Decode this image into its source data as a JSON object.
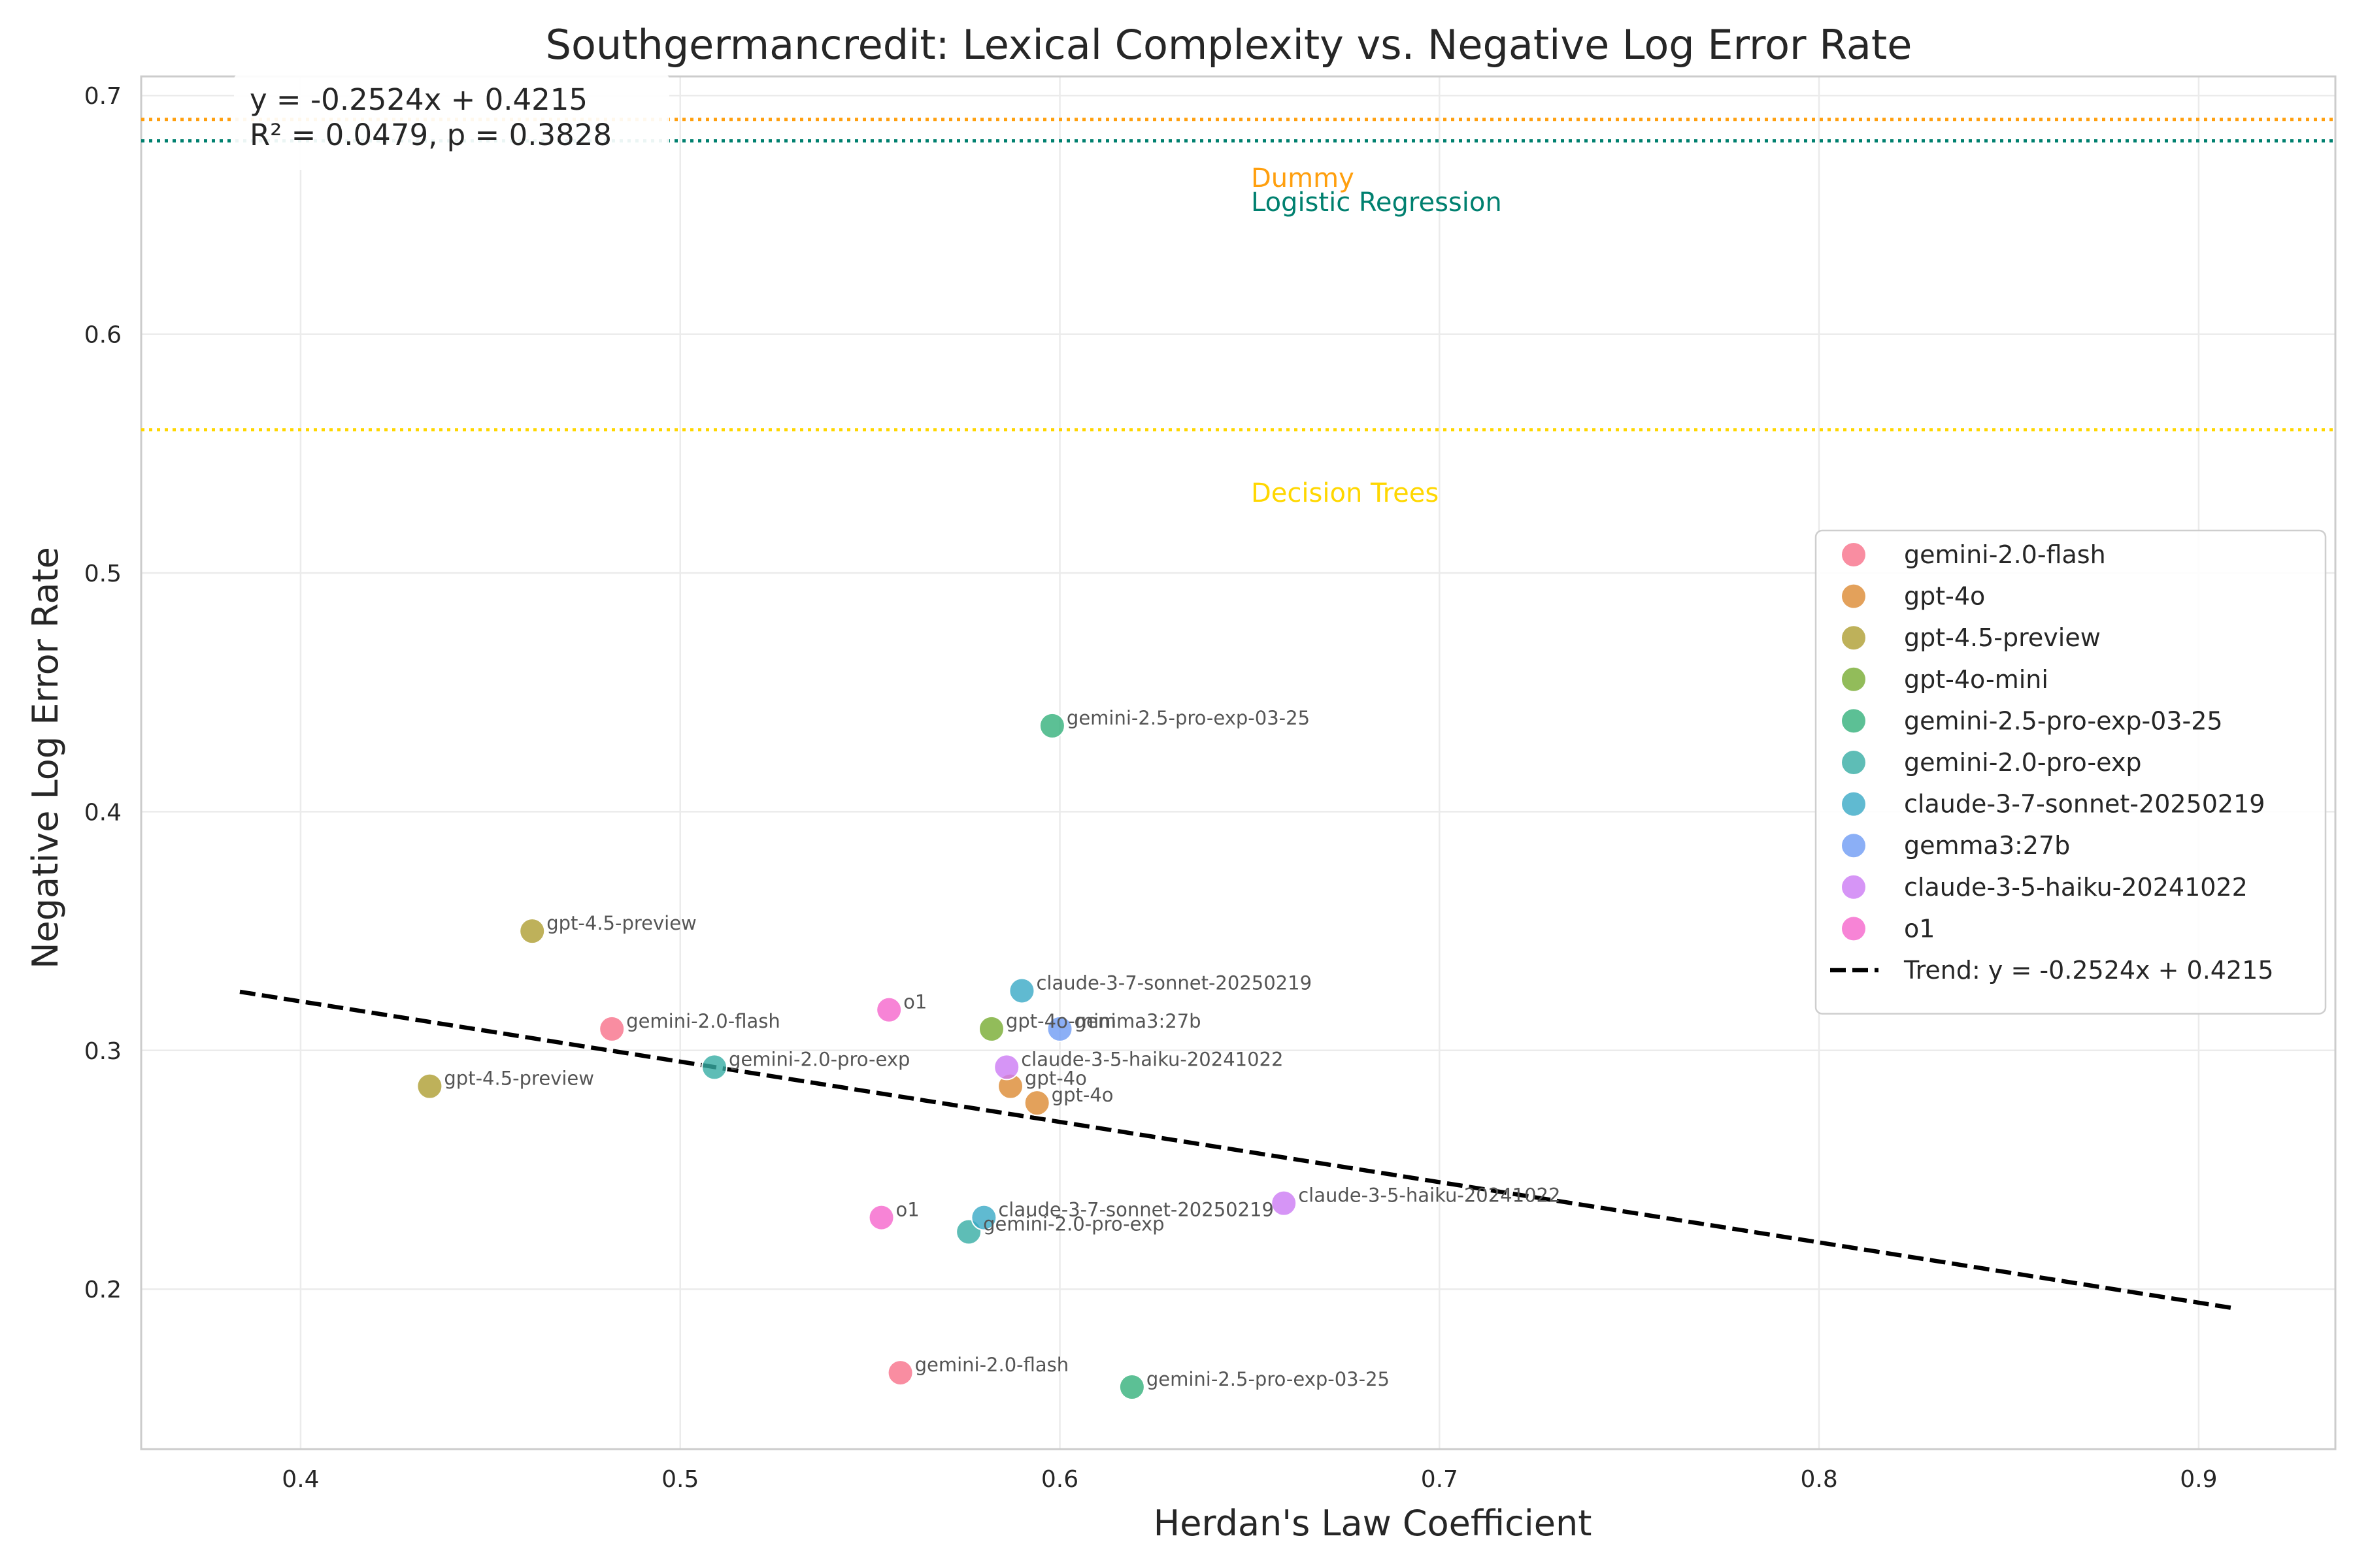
{
  "chart_data": {
    "type": "scatter",
    "title": "Southgermancredit: Lexical Complexity vs. Negative Log Error Rate",
    "xlabel": "Herdan's Law Coefficient",
    "ylabel": "Negative Log Error Rate",
    "xlim": [
      0.358,
      0.936
    ],
    "ylim": [
      0.133,
      0.708
    ],
    "x_ticks": [
      0.4,
      0.5,
      0.6,
      0.7,
      0.8,
      0.9
    ],
    "x_tick_labels": [
      "0.4",
      "0.5",
      "0.6",
      "0.7",
      "0.8",
      "0.9"
    ],
    "y_ticks": [
      0.2,
      0.3,
      0.4,
      0.5,
      0.6,
      0.7
    ],
    "y_tick_labels": [
      "0.2",
      "0.3",
      "0.4",
      "0.5",
      "0.6",
      "0.7"
    ],
    "grid": true,
    "legend_position": "right",
    "series": [
      {
        "name": "gemini-2.0-flash",
        "color": "#f77189",
        "points": [
          {
            "x": 0.482,
            "y": 0.309,
            "label": "gemini-2.0-flash"
          },
          {
            "x": 0.558,
            "y": 0.165,
            "label": "gemini-2.0-flash"
          }
        ]
      },
      {
        "name": "gpt-4o",
        "color": "#dc8932",
        "points": [
          {
            "x": 0.587,
            "y": 0.285,
            "label": "gpt-4o"
          },
          {
            "x": 0.594,
            "y": 0.278,
            "label": "gpt-4o"
          }
        ]
      },
      {
        "name": "gpt-4.5-preview",
        "color": "#ae9d31",
        "points": [
          {
            "x": 0.461,
            "y": 0.35,
            "label": "gpt-4.5-preview"
          },
          {
            "x": 0.434,
            "y": 0.285,
            "label": "gpt-4.5-preview"
          }
        ]
      },
      {
        "name": "gpt-4o-mini",
        "color": "#77ab31",
        "points": [
          {
            "x": 0.582,
            "y": 0.309,
            "label": "gpt-4o-mini"
          }
        ]
      },
      {
        "name": "gemini-2.5-pro-exp-03-25",
        "color": "#33b07a",
        "points": [
          {
            "x": 0.598,
            "y": 0.436,
            "label": "gemini-2.5-pro-exp-03-25"
          },
          {
            "x": 0.619,
            "y": 0.159,
            "label": "gemini-2.5-pro-exp-03-25"
          }
        ]
      },
      {
        "name": "gemini-2.0-pro-exp",
        "color": "#36ada4",
        "points": [
          {
            "x": 0.509,
            "y": 0.293,
            "label": "gemini-2.0-pro-exp"
          },
          {
            "x": 0.576,
            "y": 0.224,
            "label": "gemini-2.0-pro-exp"
          }
        ]
      },
      {
        "name": "claude-3-7-sonnet-20250219",
        "color": "#38a9c5",
        "points": [
          {
            "x": 0.59,
            "y": 0.325,
            "label": "claude-3-7-sonnet-20250219"
          },
          {
            "x": 0.58,
            "y": 0.23,
            "label": "claude-3-7-sonnet-20250219"
          }
        ]
      },
      {
        "name": "gemma3:27b",
        "color": "#6e9bf4",
        "points": [
          {
            "x": 0.6,
            "y": 0.309,
            "label": "gemma3:27b"
          }
        ]
      },
      {
        "name": "claude-3-5-haiku-20241022",
        "color": "#cc7af4",
        "points": [
          {
            "x": 0.586,
            "y": 0.293,
            "label": "claude-3-5-haiku-20241022"
          },
          {
            "x": 0.659,
            "y": 0.236,
            "label": "claude-3-5-haiku-20241022"
          }
        ]
      },
      {
        "name": "o1",
        "color": "#f565cc",
        "points": [
          {
            "x": 0.555,
            "y": 0.317,
            "label": "o1"
          },
          {
            "x": 0.553,
            "y": 0.23,
            "label": "o1"
          }
        ]
      }
    ],
    "trend": {
      "name": "Trend: y = -0.2524x + 0.4215",
      "slope": -0.2524,
      "intercept": 0.4215,
      "x_range": [
        0.384,
        0.909
      ],
      "color": "#000000"
    },
    "reference_lines": [
      {
        "label": "Dummy",
        "y": 0.69,
        "color": "#ff9f0e"
      },
      {
        "label": "Logistic Regression",
        "y": 0.681,
        "color": "#00806f"
      },
      {
        "label": "Decision Trees",
        "y": 0.56,
        "color": "#ffd700"
      }
    ],
    "annotation": {
      "line1": "y = -0.2524x + 0.4215",
      "line2": "R² = 0.0479, p = 0.3828"
    }
  }
}
